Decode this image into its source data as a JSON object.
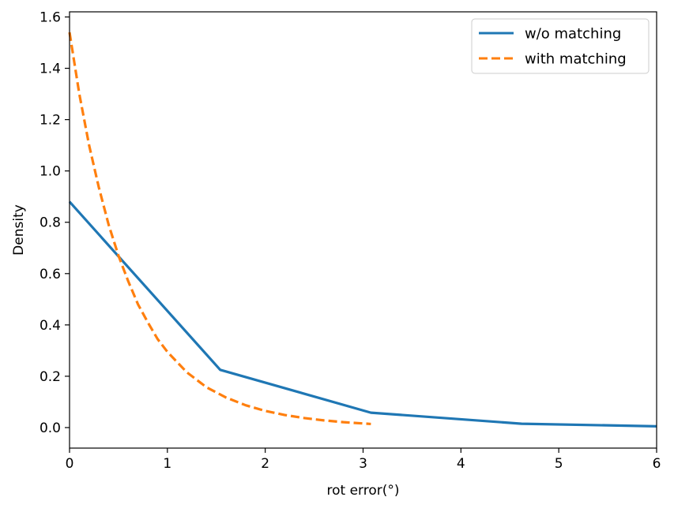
{
  "chart_data": {
    "type": "line",
    "title": "",
    "xlabel": "rot error(°)",
    "ylabel": "Density",
    "xlim": [
      0,
      6
    ],
    "ylim": [
      -0.08,
      1.62
    ],
    "xticks": [
      0,
      1,
      2,
      3,
      4,
      5,
      6
    ],
    "xtick_labels": [
      "0",
      "1",
      "2",
      "3",
      "4",
      "5",
      "6"
    ],
    "yticks": [
      0.0,
      0.2,
      0.4,
      0.6,
      0.8,
      1.0,
      1.2,
      1.4,
      1.6
    ],
    "ytick_labels": [
      "0.0",
      "0.2",
      "0.4",
      "0.6",
      "0.8",
      "1.0",
      "1.2",
      "1.4",
      "1.6"
    ],
    "grid": false,
    "legend_position": "top-right",
    "series": [
      {
        "name": "w/o matching",
        "color": "#1f77b4",
        "style": "solid",
        "x": [
          0.0,
          1.54,
          3.08,
          4.62,
          6.0
        ],
        "y": [
          0.88,
          0.225,
          0.058,
          0.015,
          0.005
        ]
      },
      {
        "name": "with matching",
        "color": "#ff7f0e",
        "style": "dashed",
        "x": [
          0.0,
          0.1,
          0.2,
          0.3,
          0.4,
          0.5,
          0.6,
          0.7,
          0.8,
          0.9,
          1.0,
          1.2,
          1.4,
          1.6,
          1.8,
          2.0,
          2.2,
          2.4,
          2.6,
          2.8,
          3.0,
          3.08
        ],
        "y": [
          1.54,
          1.3,
          1.1,
          0.935,
          0.79,
          0.67,
          0.57,
          0.48,
          0.41,
          0.345,
          0.295,
          0.215,
          0.157,
          0.117,
          0.087,
          0.065,
          0.049,
          0.037,
          0.028,
          0.021,
          0.016,
          0.014
        ]
      }
    ]
  }
}
